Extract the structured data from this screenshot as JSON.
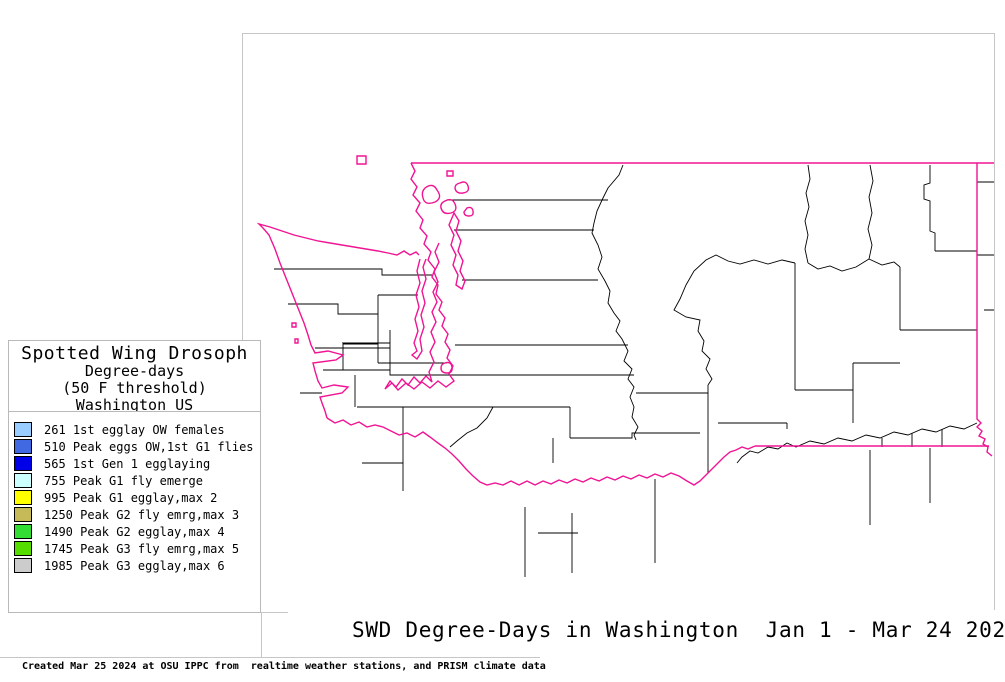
{
  "colors": {
    "state_border": "#f01493",
    "county_line": "#000000",
    "frame": "#c6c6c6",
    "background": "#ffffff"
  },
  "legend": {
    "title_lines": [
      "Spotted Wing Drosoph",
      "Degree-days",
      "(50 F threshold)",
      "Washington US"
    ],
    "items": [
      {
        "color": "#99ccff",
        "label": "261 1st egglay OW females"
      },
      {
        "color": "#4169e1",
        "label": "510 Peak eggs OW,1st G1 flies"
      },
      {
        "color": "#0000e8",
        "label": "565 1st Gen 1 egglaying"
      },
      {
        "color": "#ccffff",
        "label": "755 Peak G1 fly emerge"
      },
      {
        "color": "#ffff00",
        "label": "995 Peak G1 egglay,max 2"
      },
      {
        "color": "#c6b957",
        "label": "1250 Peak G2 fly emrg,max 3"
      },
      {
        "color": "#33dd33",
        "label": "1490 Peak G2 egglay,max 4"
      },
      {
        "color": "#55dd00",
        "label": "1745 Peak G3 fly emrg,max 5"
      },
      {
        "color": "#cccccc",
        "label": "1985 Peak G3 egglay,max 6"
      }
    ]
  },
  "map": {
    "region_label": "Washington US"
  },
  "footer": {
    "title": "SWD Degree-Days in Washington  Jan 1 - Mar 24 202",
    "attribution": "Created Mar 25 2024 at OSU IPPC from  realtime weather stations, and PRISM climate data"
  }
}
